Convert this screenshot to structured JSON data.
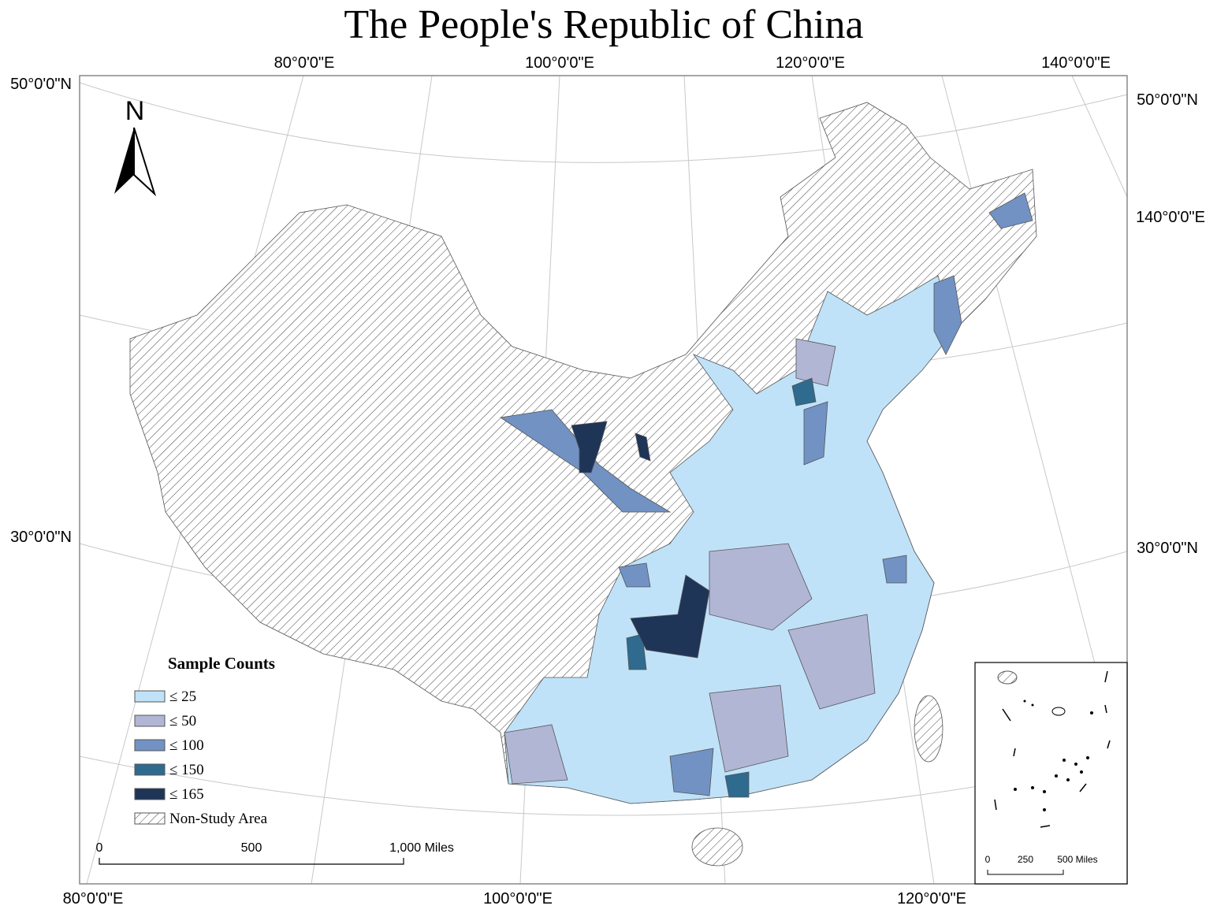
{
  "title": "The People's Republic of China",
  "graticule_labels": {
    "top": [
      "80°0'0\"E",
      "100°0'0\"E",
      "120°0'0\"E",
      "140°0'0\"E"
    ],
    "bottom": [
      "80°0'0\"E",
      "100°0'0\"E",
      "120°0'0\"E"
    ],
    "left": [
      "50°0'0\"N",
      "30°0'0\"N"
    ],
    "right": [
      "50°0'0\"N",
      "140°0'0\"E",
      "30°0'0\"N"
    ]
  },
  "north_arrow": "N",
  "legend": {
    "title": "Sample Counts",
    "items": [
      {
        "label": "≤ 25",
        "color": "#c0e2f8"
      },
      {
        "label": "≤ 50",
        "color": "#b1b6d5"
      },
      {
        "label": "≤ 100",
        "color": "#7192c3"
      },
      {
        "label": "≤ 150",
        "color": "#2f6a8f"
      },
      {
        "label": "≤ 165",
        "color": "#1e3557"
      }
    ],
    "non_study": "Non-Study Area"
  },
  "scale_bar": {
    "labels": [
      "0",
      "500",
      "1,000 Miles"
    ]
  },
  "inset_scale_bar": {
    "labels": [
      "0",
      "250",
      "500 Miles"
    ]
  }
}
